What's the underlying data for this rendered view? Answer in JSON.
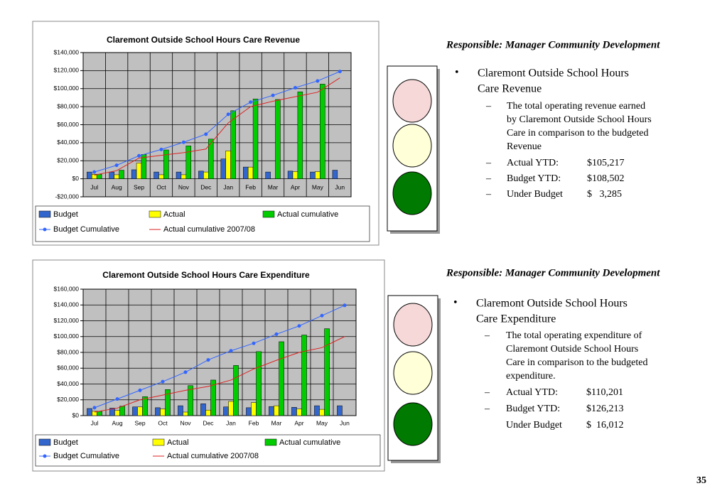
{
  "chart_data": [
    {
      "type": "bar",
      "title": "Claremont Outside School Hours Care Revenue",
      "categories": [
        "Jul",
        "Aug",
        "Sep",
        "Oct",
        "Nov",
        "Dec",
        "Jan",
        "Feb",
        "Mar",
        "Apr",
        "May",
        "Jun"
      ],
      "ylim": [
        -20000,
        140000
      ],
      "yticks": [
        {
          "value": -20000,
          "label": "-$20,000"
        },
        {
          "value": 0,
          "label": "$0"
        },
        {
          "value": 20000,
          "label": "$20,000"
        },
        {
          "value": 40000,
          "label": "$40,000"
        },
        {
          "value": 60000,
          "label": "$60,000"
        },
        {
          "value": 80000,
          "label": "$80,000"
        },
        {
          "value": 100000,
          "label": "$100,000"
        },
        {
          "value": 120000,
          "label": "$120,000"
        },
        {
          "value": 140000,
          "label": "$140,000"
        }
      ],
      "grid": true,
      "series": [
        {
          "name": "Budget",
          "type": "bar",
          "color": "#3366cc",
          "values": [
            7500,
            7500,
            10000,
            7500,
            7500,
            8500,
            22000,
            13000,
            7500,
            8500,
            7500,
            9500
          ]
        },
        {
          "name": "Actual",
          "type": "bar",
          "color": "#ffff00",
          "values": [
            5000,
            4500,
            17500,
            4500,
            4500,
            7500,
            31000,
            13000,
            null,
            8000,
            8000,
            null
          ]
        },
        {
          "name": "Actual cumulative",
          "type": "bar",
          "color": "#00cc00",
          "values": [
            5000,
            9500,
            27000,
            32000,
            36500,
            44000,
            75500,
            88500,
            88000,
            96500,
            105000,
            null
          ]
        },
        {
          "name": "Budget Cumulative",
          "type": "line",
          "marker": "circle",
          "color": "#3366ff",
          "values": [
            7500,
            15000,
            25500,
            32500,
            40500,
            49500,
            71500,
            85000,
            92500,
            101000,
            108500,
            119000
          ]
        },
        {
          "name": "Actual cumulative 2007/08",
          "type": "line",
          "color": "#dd2222",
          "values": [
            4000,
            9000,
            23000,
            26000,
            29000,
            33000,
            62000,
            80000,
            86000,
            91000,
            96000,
            112000
          ]
        }
      ]
    },
    {
      "type": "bar",
      "title": "Claremont Outside School Hours Care Expenditure",
      "categories": [
        "Jul",
        "Aug",
        "Sep",
        "Oct",
        "Nov",
        "Dec",
        "Jan",
        "Feb",
        "Mar",
        "Apr",
        "May",
        "Jun"
      ],
      "ylim": [
        0,
        160000
      ],
      "yticks": [
        {
          "value": 0,
          "label": "$0"
        },
        {
          "value": 20000,
          "label": "$20,000"
        },
        {
          "value": 40000,
          "label": "$40,000"
        },
        {
          "value": 60000,
          "label": "$60,000"
        },
        {
          "value": 80000,
          "label": "$80,000"
        },
        {
          "value": 100000,
          "label": "$100,000"
        },
        {
          "value": 120000,
          "label": "$120,000"
        },
        {
          "value": 140000,
          "label": "$140,000"
        },
        {
          "value": 160000,
          "label": "$160,000"
        }
      ],
      "grid": true,
      "series": [
        {
          "name": "Budget",
          "type": "bar",
          "color": "#3366cc",
          "values": [
            9000,
            9500,
            11000,
            10000,
            12500,
            15000,
            11000,
            10000,
            11500,
            10500,
            12500,
            12500
          ]
        },
        {
          "name": "Actual",
          "type": "bar",
          "color": "#ffff00",
          "values": [
            5500,
            6500,
            11000,
            8500,
            4500,
            7000,
            18000,
            16500,
            12500,
            8500,
            8000,
            null
          ]
        },
        {
          "name": "Actual cumulative",
          "type": "bar",
          "color": "#00cc00",
          "values": [
            5500,
            12000,
            24000,
            33000,
            38000,
            45000,
            63500,
            81000,
            93500,
            102000,
            110000,
            null
          ]
        },
        {
          "name": "Budget Cumulative",
          "type": "line",
          "marker": "circle",
          "color": "#3366ff",
          "values": [
            10000,
            21000,
            32000,
            43000,
            55000,
            70500,
            82000,
            91500,
            103000,
            113500,
            126500,
            139500
          ]
        },
        {
          "name": "Actual cumulative 2007/08",
          "type": "line",
          "color": "#dd2222",
          "values": [
            4500,
            9500,
            20000,
            26000,
            32000,
            37000,
            45000,
            59000,
            70000,
            80000,
            86000,
            100000
          ]
        }
      ]
    }
  ],
  "panels": [
    {
      "heading": "Responsible: Manager Community Development",
      "bullet_lines": [
        "Claremont Outside School Hours",
        "Care Revenue"
      ],
      "detail_lines": [
        "The total operating revenue earned",
        "by Claremont Outside School Hours",
        "Care in comparison to the budgeted",
        "Revenue"
      ],
      "rows": [
        [
          "Actual YTD:",
          "$105,217"
        ],
        [
          "Budget YTD:",
          "$108,502"
        ],
        [
          "Under Budget",
          "$   3,285"
        ]
      ]
    },
    {
      "heading": "Responsible: Manager Community Development",
      "bullet_lines": [
        "Claremont Outside School Hours",
        "Care Expenditure"
      ],
      "detail_lines": [
        "The total operating expenditure of",
        "Claremont Outside School Hours",
        "Care in comparison to the budgeted",
        "expenditure."
      ],
      "rows": [
        [
          "Actual YTD:",
          "$110,201"
        ],
        [
          "Budget YTD:",
          "$126,213"
        ],
        [
          "Under Budget",
          "$  16,012"
        ]
      ]
    }
  ],
  "page_number": "35"
}
